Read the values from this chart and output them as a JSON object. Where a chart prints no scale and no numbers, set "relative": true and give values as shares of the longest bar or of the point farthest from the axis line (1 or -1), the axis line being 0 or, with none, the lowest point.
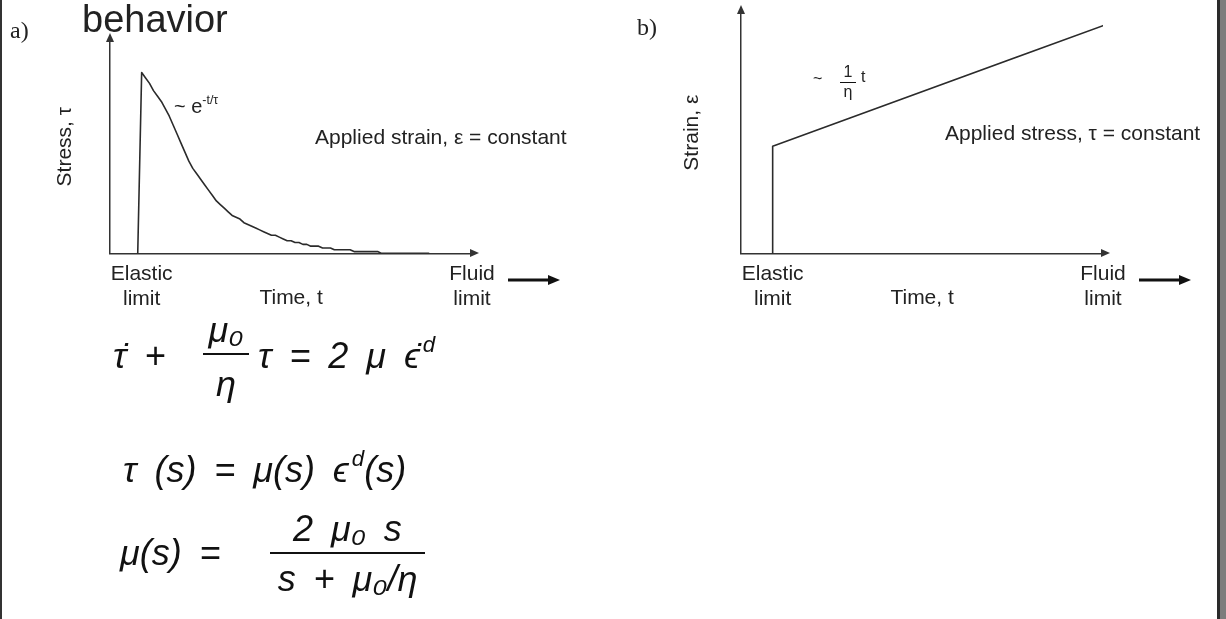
{
  "chart_data": [
    {
      "type": "other",
      "title": "behavior"
    },
    {
      "type": "line",
      "title": "a)",
      "xlabel": "Time, t",
      "ylabel": "Stress, τ",
      "relative": true,
      "marker": "none",
      "categories": [
        null,
        null,
        null,
        null,
        null,
        null,
        null,
        null,
        "Elastic limit",
        null,
        null,
        null,
        null,
        null,
        null,
        null,
        null,
        null,
        null,
        null,
        null,
        null,
        null,
        null,
        null,
        null,
        null,
        null,
        null,
        null,
        null,
        null,
        null,
        null,
        null,
        null,
        null,
        null,
        null,
        null,
        null,
        null,
        null,
        null,
        null,
        null,
        null,
        null,
        null,
        null,
        null,
        null,
        null,
        null,
        null,
        null,
        null,
        null,
        null,
        null,
        null,
        null,
        null,
        null,
        null,
        null,
        null,
        null,
        null,
        null,
        null,
        null,
        null,
        null,
        null,
        null,
        null,
        null,
        null,
        null,
        null,
        null,
        null,
        null,
        null,
        null,
        null,
        null,
        null,
        null,
        null,
        null,
        "Fluid limit"
      ],
      "series": [
        {
          "color": "#2b2b2b",
          "values": [
            null,
            null,
            null,
            null,
            null,
            null,
            null,
            0,
            1,
            0.97,
            0.94,
            0.9,
            0.87,
            0.84,
            0.8,
            0.76,
            0.71,
            0.66,
            0.61,
            0.56,
            0.51,
            0.47,
            0.44,
            0.41,
            0.38,
            0.35,
            0.32,
            0.29,
            0.27,
            0.25,
            0.23,
            0.21,
            0.2,
            0.19,
            0.17,
            0.16,
            0.15,
            0.14,
            0.13,
            0.12,
            0.11,
            0.1,
            0.1,
            0.09,
            0.08,
            0.07,
            0.07,
            0.06,
            0.06,
            0.05,
            0.05,
            0.04,
            0.04,
            0.04,
            0.03,
            0.03,
            0.03,
            0.02,
            0.02,
            0.02,
            0.02,
            0.02,
            0.01,
            0.01,
            0.01,
            0.01,
            0.01,
            0.01,
            0.01,
            0,
            0,
            0,
            0,
            0,
            0,
            0,
            0,
            0,
            0,
            0,
            0,
            0,
            null,
            null,
            null,
            null,
            null,
            null,
            null,
            null,
            null,
            null,
            null
          ]
        }
      ],
      "annotations": [
        "~ e$^{-t/τ}$",
        "Applied strain, ε = constant"
      ]
    },
    {
      "type": "line",
      "title": "b)",
      "xlabel": "Time, t",
      "ylabel": "Strain, ε",
      "relative": true,
      "marker": "none",
      "categories": [
        null,
        null,
        "Elastic limit",
        null,
        null,
        null,
        null,
        null,
        null,
        null,
        null,
        null,
        null,
        null,
        null,
        null,
        null,
        null,
        null,
        null,
        null,
        null,
        null,
        "Fluid limit"
      ],
      "series": [
        {
          "color": "#2b2b2b",
          "x": [
            "Elastic limit",
            "Elastic limit",
            "Fluid limit"
          ],
          "values": [
            0,
            0.47,
            1
          ]
        }
      ],
      "annotations": [
        "~",
        "1",
        "η",
        "t",
        "Applied stress, τ = constant"
      ]
    },
    {
      "type": "other",
      "annotations": [
        "τ̇ +",
        "μ₀",
        "η",
        "τ = 2 μ ϵ̇$^{d}$",
        "τ (s) = μ(s) ϵ$^{d}$(s)",
        "μ(s) =",
        "2 μ₀ s",
        "s + μ₀/η"
      ]
    }
  ]
}
